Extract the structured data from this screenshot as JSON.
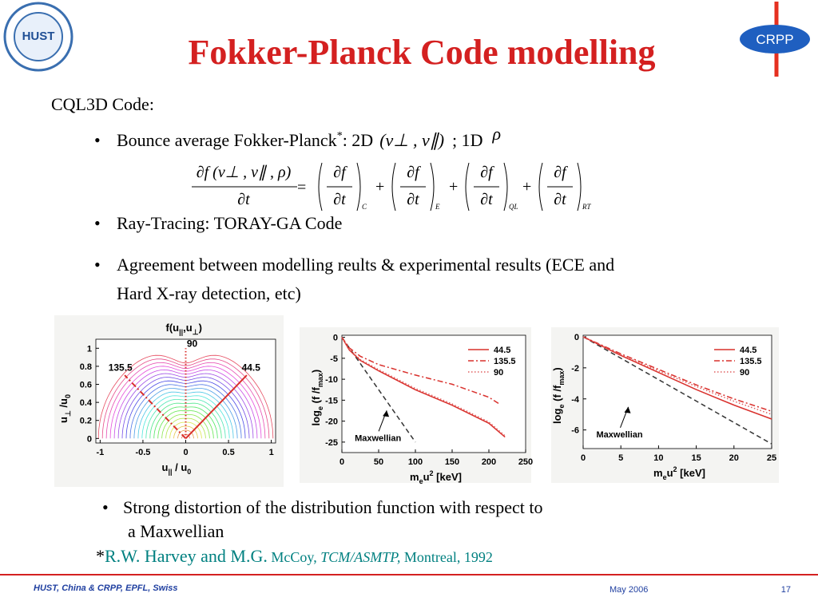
{
  "header": {
    "title": "Fokker-Planck Code modelling",
    "logo_left": "HUST",
    "logo_right": "CRPP"
  },
  "body": {
    "intro": "CQL3D Code:",
    "bullet1": [
      "Bounce average Fokker-Planck",
      "*",
      ": 2D",
      "(v⊥ , v∥)",
      "; 1D",
      "ρ"
    ],
    "equation": {
      "lhs_num": "∂f (v⊥ , v∥ , ρ)",
      "lhs_den": "∂t",
      "equals": "=",
      "plus": "+",
      "terms": [
        {
          "num": "∂f",
          "den": "∂t",
          "sub": "C"
        },
        {
          "num": "∂f",
          "den": "∂t",
          "sub": "E"
        },
        {
          "num": "∂f",
          "den": "∂t",
          "sub": "QL"
        },
        {
          "num": "∂f",
          "den": "∂t",
          "sub": "RT"
        }
      ]
    },
    "bullet2": "Ray-Tracing:  TORAY-GA Code",
    "bullet3": [
      "Agreement between modelling reults & experimental results (ECE and",
      "Hard X-ray detection, etc)"
    ],
    "bullet4": [
      "Strong distortion of the distribution function with respect to",
      "a  Maxwellian"
    ],
    "reference": [
      "*",
      "R.W. Harvey and M.G.",
      " McCoy,",
      " TCM/ASMTP,",
      " Montreal, 1992"
    ]
  },
  "chart_data": [
    {
      "type": "contour",
      "title": [
        "f(u",
        "||",
        ",u",
        "⊥",
        ")"
      ],
      "xlabel": [
        "u",
        "||",
        " / u",
        "0"
      ],
      "ylabel": [
        "u",
        "⊥",
        " /u",
        "0"
      ],
      "xlim": [
        -1.05,
        1.05
      ],
      "ylim": [
        -0.05,
        1.1
      ],
      "xticks": [
        -1,
        -0.5,
        0,
        0.5,
        1
      ],
      "yticks": [
        0,
        0.2,
        0.4,
        0.6,
        0.8,
        1
      ],
      "rays": [
        90,
        135.5,
        44.5
      ],
      "color": "#d9302c"
    },
    {
      "type": "line",
      "xlabel": [
        "m",
        "e",
        "u",
        "2",
        " [keV]"
      ],
      "ylabel": [
        "log",
        "e",
        " (f /f",
        "max",
        ")"
      ],
      "xlim": [
        0,
        250
      ],
      "ylim": [
        -27.5,
        0.5
      ],
      "xticks": [
        0,
        50,
        100,
        150,
        200,
        250
      ],
      "yticks": [
        0,
        -5,
        -10,
        -15,
        -20,
        -25
      ],
      "legend": "upper right",
      "series": [
        {
          "name": "44.5",
          "color": "#d9302c",
          "style": "solid",
          "x": [
            0,
            10,
            25,
            50,
            100,
            150,
            200,
            222
          ],
          "values": [
            0,
            -3,
            -5.5,
            -8,
            -12.5,
            -16.2,
            -20.5,
            -23.8
          ]
        },
        {
          "name": "135.5",
          "color": "#d9302c",
          "style": "dashdot",
          "x": [
            0,
            10,
            25,
            50,
            100,
            150,
            200,
            215
          ],
          "values": [
            0,
            -2.5,
            -4.5,
            -6.5,
            -9,
            -11.2,
            -14.3,
            -16
          ]
        },
        {
          "name": "90",
          "color": "#e06060",
          "style": "dotted",
          "x": [
            0,
            10,
            25,
            50,
            100,
            150,
            200,
            222
          ],
          "values": [
            0,
            -2.8,
            -5.3,
            -7.7,
            -12.2,
            -15.9,
            -20.2,
            -23.5
          ]
        }
      ],
      "reference_line": {
        "label": "Maxwellian",
        "color": "#333333",
        "x": [
          0,
          100
        ],
        "values": [
          0,
          -25
        ]
      }
    },
    {
      "type": "line",
      "xlabel": [
        "m",
        "e",
        "u",
        "2",
        " [keV]"
      ],
      "ylabel": [
        "log",
        "e",
        " (f /f",
        "max",
        ")"
      ],
      "xlim": [
        0,
        25
      ],
      "ylim": [
        -7.2,
        0.1
      ],
      "xticks": [
        0,
        5,
        10,
        15,
        20,
        25
      ],
      "yticks": [
        0,
        -2,
        -4,
        -6
      ],
      "legend": "upper right",
      "series": [
        {
          "name": "44.5",
          "color": "#d9302c",
          "style": "solid",
          "x": [
            0,
            5,
            10,
            15,
            20,
            25
          ],
          "values": [
            0,
            -1.2,
            -2.3,
            -3.4,
            -4.4,
            -5.3
          ]
        },
        {
          "name": "135.5",
          "color": "#d9302c",
          "style": "dashdot",
          "x": [
            0,
            5,
            10,
            15,
            20,
            25
          ],
          "values": [
            0,
            -1.1,
            -2.1,
            -3.1,
            -4,
            -4.8
          ]
        },
        {
          "name": "90",
          "color": "#e06060",
          "style": "dotted",
          "x": [
            0,
            5,
            10,
            15,
            20,
            25
          ],
          "values": [
            0,
            -1.15,
            -2.2,
            -3.2,
            -4.15,
            -5
          ]
        }
      ],
      "reference_line": {
        "label": "Maxwellian",
        "color": "#333333",
        "x": [
          0,
          25
        ],
        "values": [
          0,
          -6.9
        ]
      }
    }
  ],
  "footer": {
    "left": "HUST, China   & CRPP,  EPFL,  Swiss",
    "date": "May   2006",
    "page": "17"
  }
}
